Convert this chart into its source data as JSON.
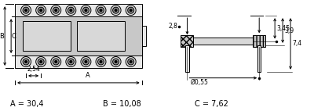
{
  "fig_width": 4.0,
  "fig_height": 1.42,
  "dpi": 100,
  "bg_color": "#ffffff",
  "line_color": "#000000",
  "gray_light": "#e8e8e8",
  "gray_medium": "#c8c8c8",
  "gray_dark": "#a0a0a0",
  "dim_text": [
    "A = 30,4",
    "B = 10,08",
    "C = 7,62"
  ],
  "dim_labels": [
    "A",
    "B",
    "C",
    "2,54",
    "2,8",
    "3,45",
    "3,9",
    "7,4",
    "Ø0,55"
  ]
}
